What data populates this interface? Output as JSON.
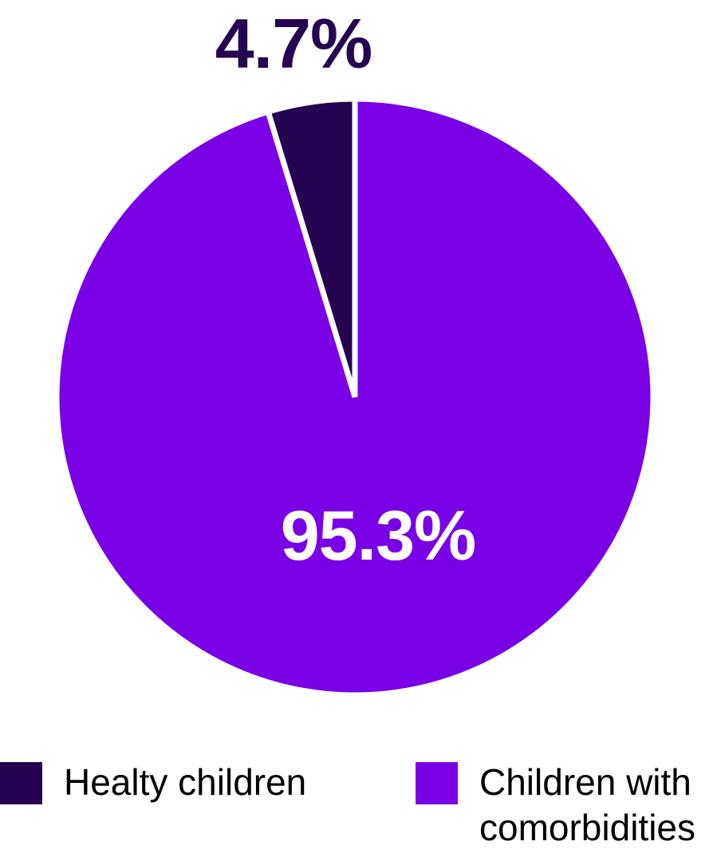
{
  "chart_data": {
    "type": "pie",
    "title": "",
    "categories": [
      "Healty children",
      "Children with comorbidities"
    ],
    "values": [
      4.7,
      95.3
    ],
    "slices": [
      {
        "label": "Healty children",
        "value": 4.7,
        "pct_label": "4.7%",
        "color": "#250551",
        "pct_label_color": "#250551",
        "pct_label_position": "outside-top-left"
      },
      {
        "label": "Children with comorbidities",
        "value": 95.3,
        "pct_label": "95.3%",
        "color": "#7A00E6",
        "pct_label_color": "#ffffff",
        "pct_label_position": "inside"
      }
    ],
    "start_angle_deg": -16.92,
    "direction": "clockwise",
    "gap_color": "#ffffff",
    "gap_width": 7,
    "legend_position": "bottom",
    "background_color": "#ffffff"
  }
}
